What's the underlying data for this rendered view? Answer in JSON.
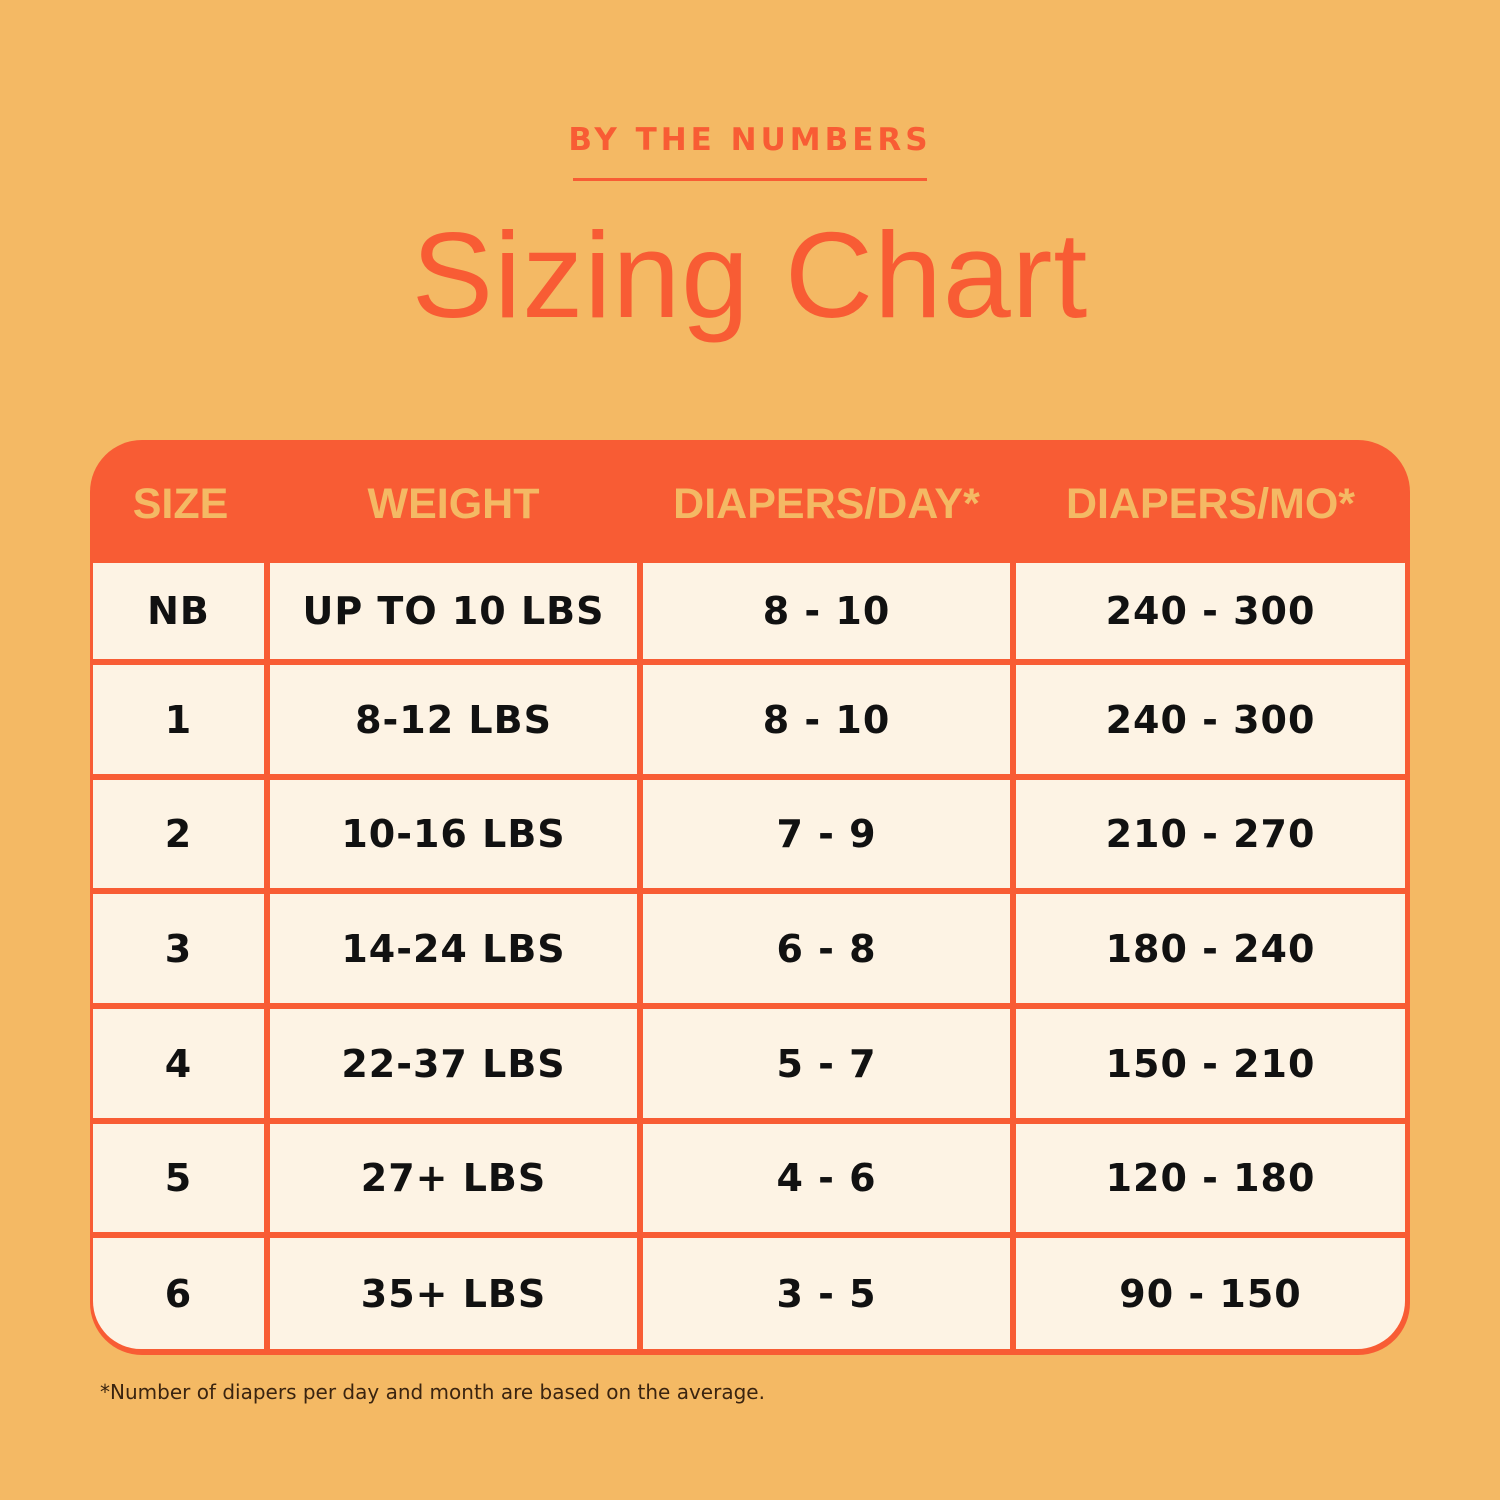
{
  "header": {
    "eyebrow": "BY THE NUMBERS",
    "title": "Sizing Chart"
  },
  "colors": {
    "background": "#f4b964",
    "accent": "#f85c34",
    "cell": "#fdf3e4"
  },
  "chart_data": {
    "type": "table",
    "columns": [
      "SIZE",
      "WEIGHT",
      "DIAPERS/DAY*",
      "DIAPERS/MO*"
    ],
    "rows": [
      [
        "NB",
        "UP TO 10 LBS",
        "8 - 10",
        "240 - 300"
      ],
      [
        "1",
        "8-12 LBS",
        "8 - 10",
        "240 - 300"
      ],
      [
        "2",
        "10-16 LBS",
        "7 - 9",
        "210 - 270"
      ],
      [
        "3",
        "14-24 LBS",
        "6 - 8",
        "180 - 240"
      ],
      [
        "4",
        "22-37 LBS",
        "5 - 7",
        "150 - 210"
      ],
      [
        "5",
        "27+ LBS",
        "4 - 6",
        "120 - 180"
      ],
      [
        "6",
        "35+ LBS",
        "3 - 5",
        "90 - 150"
      ]
    ]
  },
  "footnote": "*Number of diapers per day and month are based on the average."
}
